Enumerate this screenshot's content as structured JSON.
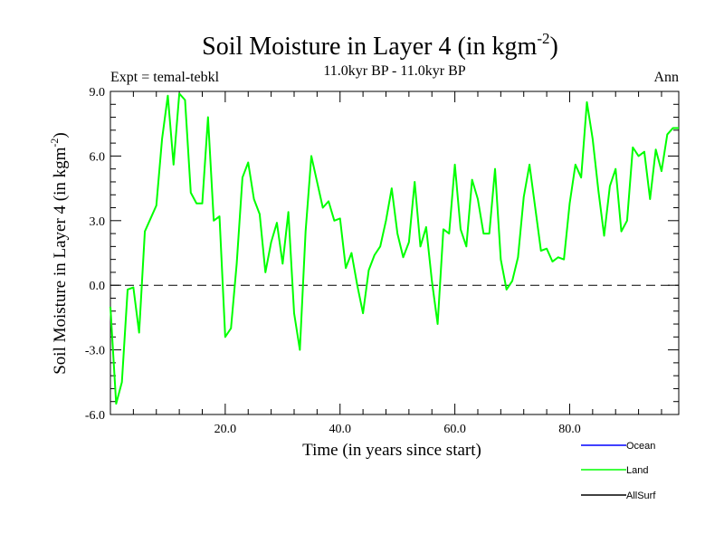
{
  "chart_data": {
    "type": "line",
    "title": "Soil Moisture in Layer 4 (in kgm",
    "title_sup": "-2",
    "title_close": ")",
    "subtitle": "11.0kyr BP - 11.0kyr BP",
    "left_label": "Expt = temal-tebkl",
    "right_label": "Ann",
    "xlabel": "Time (in years since start)",
    "ylabel": "Soil Moisture in Layer 4 (in kgm",
    "ylabel_sup": "-2",
    "ylabel_close": ")",
    "xlim": [
      0,
      99
    ],
    "ylim": [
      -6,
      9
    ],
    "x_ticks": [
      20,
      40,
      60,
      80
    ],
    "x_tick_labels": [
      "20.0",
      "40.0",
      "60.0",
      "80.0"
    ],
    "y_ticks": [
      -6,
      -3,
      0,
      3,
      6,
      9
    ],
    "y_tick_labels": [
      "-6.0",
      "-3.0",
      "0.0",
      "3.0",
      "6.0",
      "9.0"
    ],
    "zero_line": 0,
    "series": [
      {
        "name": "Ocean",
        "color": "#0000ff",
        "values": []
      },
      {
        "name": "Land",
        "color": "#00ff00",
        "x": [
          0,
          1,
          2,
          3,
          4,
          5,
          6,
          7,
          8,
          9,
          10,
          11,
          12,
          13,
          14,
          15,
          16,
          17,
          18,
          19,
          20,
          21,
          22,
          23,
          24,
          25,
          26,
          27,
          28,
          29,
          30,
          31,
          32,
          33,
          34,
          35,
          36,
          37,
          38,
          39,
          40,
          41,
          42,
          43,
          44,
          45,
          46,
          47,
          48,
          49,
          50,
          51,
          52,
          53,
          54,
          55,
          56,
          57,
          58,
          59,
          60,
          61,
          62,
          63,
          64,
          65,
          66,
          67,
          68,
          69,
          70,
          71,
          72,
          73,
          74,
          75,
          76,
          77,
          78,
          79,
          80,
          81,
          82,
          83,
          84,
          85,
          86,
          87,
          88,
          89,
          90,
          91,
          92,
          93,
          94,
          95,
          96,
          97,
          98,
          99
        ],
        "values": [
          -1.0,
          -5.5,
          -4.5,
          -0.2,
          -0.1,
          -2.2,
          2.5,
          3.1,
          3.7,
          6.8,
          8.8,
          5.6,
          8.9,
          8.6,
          4.3,
          3.8,
          3.8,
          7.8,
          3.0,
          3.2,
          -2.4,
          -2.0,
          1.0,
          5.0,
          5.7,
          4.0,
          3.3,
          0.6,
          2.0,
          2.9,
          1.0,
          3.4,
          -1.3,
          -3.0,
          2.5,
          6.0,
          4.8,
          3.6,
          3.9,
          3.0,
          3.1,
          0.8,
          1.5,
          0.0,
          -1.3,
          0.7,
          1.4,
          1.8,
          3.0,
          4.5,
          2.4,
          1.3,
          2.0,
          4.8,
          1.8,
          2.7,
          0.2,
          -1.8,
          2.6,
          2.4,
          5.6,
          2.6,
          1.8,
          4.9,
          4.0,
          2.4,
          2.4,
          5.4,
          1.2,
          -0.2,
          0.2,
          1.3,
          4.1,
          5.6,
          3.6,
          1.6,
          1.7,
          1.1,
          1.3,
          1.2,
          3.8,
          5.6,
          5.0,
          8.5,
          6.8,
          4.4,
          2.3,
          4.6,
          5.4,
          2.5,
          3.0,
          6.4,
          6.0,
          6.2,
          4.0,
          6.3,
          5.3,
          7.0,
          7.3,
          7.3
        ]
      },
      {
        "name": "AllSurf",
        "color": "#000000",
        "values": []
      }
    ],
    "legend": {
      "position": "bottom-right",
      "entries": [
        {
          "label": "Ocean",
          "color": "#0000ff"
        },
        {
          "label": "Land",
          "color": "#00ff00"
        },
        {
          "label": "AllSurf",
          "color": "#000000"
        }
      ]
    }
  }
}
